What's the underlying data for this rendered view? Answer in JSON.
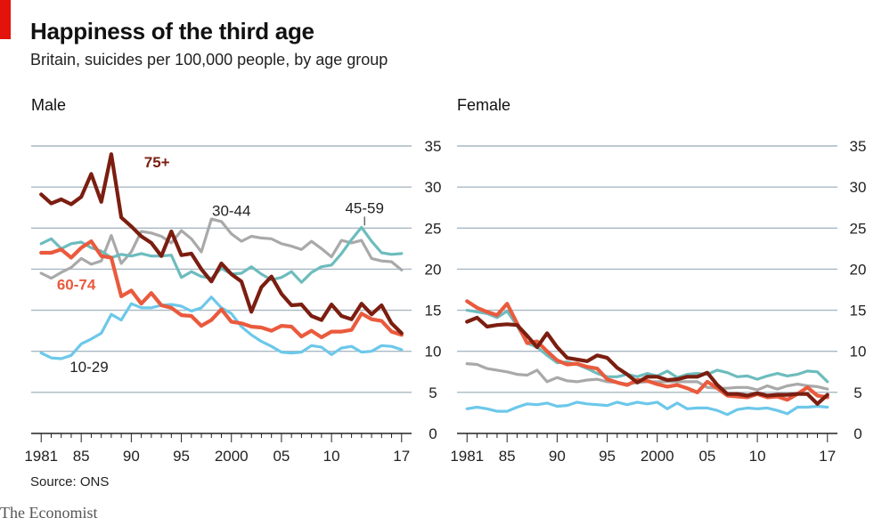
{
  "header": {
    "title": "Happiness of the third age",
    "subtitle": "Britain, suicides per 100,000 people, by age group"
  },
  "footer": {
    "source": "Source: ONS",
    "brand": "The Economist"
  },
  "colors": {
    "10-29": "#6cc8ea",
    "30-44": "#a9a9a9",
    "45-59": "#6dbcbd",
    "60-74": "#ea5a3d",
    "75+": "#7b1e10",
    "grid": "#a9b8c3"
  },
  "chart_data": [
    {
      "type": "line",
      "panel_title": "Male",
      "x_ticks": [
        1981,
        1985,
        1990,
        1995,
        2000,
        2005,
        2010,
        2017
      ],
      "x_tick_labels": [
        "1981",
        "85",
        "90",
        "95",
        "2000",
        "05",
        "10",
        "17"
      ],
      "xlim": [
        1980,
        2018
      ],
      "ylim": [
        0,
        35
      ],
      "y_ticks": [
        0,
        5,
        10,
        15,
        20,
        25,
        30,
        35
      ],
      "y_tick_labels": [
        "0",
        "5",
        "10",
        "15",
        "20",
        "25",
        "30",
        "35"
      ],
      "grid": true,
      "x": [
        1981,
        1982,
        1983,
        1984,
        1985,
        1986,
        1987,
        1988,
        1989,
        1990,
        1991,
        1992,
        1993,
        1994,
        1995,
        1996,
        1997,
        1998,
        1999,
        2000,
        2001,
        2002,
        2003,
        2004,
        2005,
        2006,
        2007,
        2008,
        2009,
        2010,
        2011,
        2012,
        2013,
        2014,
        2015,
        2016,
        2017
      ],
      "series": [
        {
          "name": "10-29",
          "color_key": "10-29",
          "label_anchor": [
            1984,
            9
          ],
          "values": [
            9.8,
            9.2,
            9.1,
            9.5,
            10.9,
            11.5,
            12.2,
            14.5,
            13.8,
            15.8,
            15.3,
            15.3,
            15.6,
            15.7,
            15.5,
            14.9,
            15.3,
            16.6,
            15.3,
            14.6,
            13.0,
            12.0,
            11.2,
            10.6,
            9.9,
            9.8,
            9.9,
            10.7,
            10.5,
            9.6,
            10.4,
            10.6,
            9.9,
            10.0,
            10.7,
            10.6,
            10.2
          ]
        },
        {
          "name": "30-44",
          "color_key": "30-44",
          "label_anchor": [
            2000,
            26.5
          ],
          "values": [
            19.5,
            18.9,
            19.6,
            20.2,
            21.3,
            20.6,
            21.0,
            24.1,
            20.7,
            22.1,
            24.6,
            24.4,
            24.0,
            23.2,
            24.7,
            23.7,
            22.1,
            26.1,
            25.8,
            24.3,
            23.4,
            24.0,
            23.8,
            23.7,
            23.1,
            22.8,
            22.4,
            23.4,
            22.5,
            21.5,
            23.5,
            23.2,
            23.5,
            21.3,
            21.0,
            20.9,
            19.9
          ]
        },
        {
          "name": "45-59",
          "color_key": "45-59",
          "label_anchor": [
            2013.3,
            25.1
          ],
          "values": [
            23.1,
            23.7,
            22.5,
            23.1,
            23.3,
            22.6,
            22.2,
            21.4,
            21.8,
            21.6,
            21.9,
            21.6,
            21.6,
            21.7,
            19.0,
            19.7,
            19.1,
            18.9,
            20.1,
            19.4,
            19.5,
            20.3,
            19.4,
            18.7,
            19.0,
            19.7,
            18.4,
            19.6,
            20.3,
            20.5,
            21.9,
            23.6,
            25.1,
            23.4,
            22.0,
            21.8,
            21.9
          ]
        },
        {
          "name": "60-74",
          "color_key": "60-74",
          "label_anchor": [
            1984.5,
            17.5
          ],
          "values": [
            22.0,
            22.0,
            22.4,
            21.4,
            22.6,
            23.4,
            21.6,
            21.4,
            16.7,
            17.4,
            15.8,
            17.1,
            15.6,
            15.3,
            14.4,
            14.3,
            13.1,
            13.8,
            15.1,
            13.6,
            13.4,
            13.0,
            12.9,
            12.5,
            13.1,
            13.0,
            11.8,
            12.5,
            11.7,
            12.4,
            12.4,
            12.6,
            14.6,
            13.9,
            13.7,
            12.4,
            12.0
          ]
        },
        {
          "name": "75+",
          "color_key": "75+",
          "label_anchor": [
            1989.5,
            32.2
          ],
          "values": [
            29.1,
            28.0,
            28.5,
            27.9,
            28.8,
            31.6,
            28.2,
            34.0,
            26.3,
            25.2,
            24.0,
            23.2,
            21.6,
            24.6,
            21.7,
            21.9,
            20.0,
            18.5,
            20.7,
            19.4,
            18.5,
            14.8,
            17.8,
            19.1,
            17.0,
            15.6,
            15.7,
            14.3,
            13.8,
            15.7,
            14.3,
            13.9,
            15.8,
            14.5,
            15.6,
            13.4,
            12.2
          ]
        }
      ]
    },
    {
      "type": "line",
      "panel_title": "Female",
      "x_ticks": [
        1981,
        1985,
        1990,
        1995,
        2000,
        2005,
        2010,
        2017
      ],
      "x_tick_labels": [
        "1981",
        "85",
        "90",
        "95",
        "2000",
        "05",
        "10",
        "17"
      ],
      "xlim": [
        1980,
        2018
      ],
      "ylim": [
        0,
        35
      ],
      "y_ticks": [
        0,
        5,
        10,
        15,
        20,
        25,
        30,
        35
      ],
      "y_tick_labels": [
        "0",
        "5",
        "10",
        "15",
        "20",
        "25",
        "30",
        "35"
      ],
      "grid": true,
      "x": [
        1981,
        1982,
        1983,
        1984,
        1985,
        1986,
        1987,
        1988,
        1989,
        1990,
        1991,
        1992,
        1993,
        1994,
        1995,
        1996,
        1997,
        1998,
        1999,
        2000,
        2001,
        2002,
        2003,
        2004,
        2005,
        2006,
        2007,
        2008,
        2009,
        2010,
        2011,
        2012,
        2013,
        2014,
        2015,
        2016,
        2017
      ],
      "series": [
        {
          "name": "10-29",
          "color_key": "10-29",
          "values": [
            3.0,
            3.2,
            3.0,
            2.7,
            2.7,
            3.2,
            3.6,
            3.5,
            3.7,
            3.3,
            3.4,
            3.8,
            3.6,
            3.5,
            3.4,
            3.8,
            3.5,
            3.8,
            3.6,
            3.8,
            3.0,
            3.7,
            3.0,
            3.1,
            3.1,
            2.8,
            2.3,
            2.9,
            3.1,
            3.0,
            3.1,
            2.8,
            2.4,
            3.2,
            3.2,
            3.3,
            3.2
          ]
        },
        {
          "name": "30-44",
          "color_key": "30-44",
          "values": [
            8.5,
            8.4,
            7.9,
            7.7,
            7.5,
            7.2,
            7.1,
            7.7,
            6.3,
            6.8,
            6.4,
            6.3,
            6.5,
            6.6,
            6.3,
            6.2,
            6.0,
            6.2,
            6.3,
            6.3,
            6.3,
            6.3,
            6.3,
            6.3,
            5.6,
            5.5,
            5.5,
            5.6,
            5.6,
            5.3,
            5.8,
            5.4,
            5.8,
            6.0,
            5.8,
            5.7,
            5.4
          ]
        },
        {
          "name": "45-59",
          "color_key": "45-59",
          "values": [
            15.0,
            14.8,
            14.6,
            14.1,
            14.9,
            13.1,
            11.0,
            10.5,
            9.5,
            8.6,
            8.7,
            8.4,
            7.9,
            7.3,
            6.9,
            6.9,
            7.2,
            6.9,
            7.3,
            7.0,
            7.6,
            6.8,
            7.2,
            7.3,
            7.2,
            7.7,
            7.4,
            6.9,
            7.0,
            6.6,
            7.0,
            7.3,
            7.0,
            7.2,
            7.6,
            7.5,
            6.3
          ]
        },
        {
          "name": "60-74",
          "color_key": "60-74",
          "values": [
            16.1,
            15.3,
            14.8,
            14.4,
            15.8,
            13.4,
            11.0,
            11.2,
            10.0,
            8.9,
            8.4,
            8.5,
            8.1,
            7.9,
            6.6,
            6.2,
            5.9,
            6.5,
            6.4,
            6.0,
            5.7,
            5.9,
            5.5,
            5.0,
            6.3,
            5.5,
            4.6,
            4.5,
            4.4,
            4.8,
            4.4,
            4.5,
            4.1,
            4.8,
            5.6,
            4.6,
            4.4
          ]
        },
        {
          "name": "75+",
          "color_key": "75+",
          "values": [
            13.6,
            14.1,
            13.0,
            13.2,
            13.3,
            13.2,
            11.9,
            10.5,
            12.2,
            10.5,
            9.2,
            9.0,
            8.8,
            9.5,
            9.2,
            8.0,
            7.2,
            6.2,
            6.9,
            6.9,
            6.5,
            6.6,
            6.9,
            6.9,
            7.4,
            5.9,
            4.8,
            4.8,
            4.6,
            4.9,
            4.6,
            4.7,
            4.7,
            4.8,
            4.8,
            3.6,
            4.7
          ]
        }
      ]
    }
  ]
}
